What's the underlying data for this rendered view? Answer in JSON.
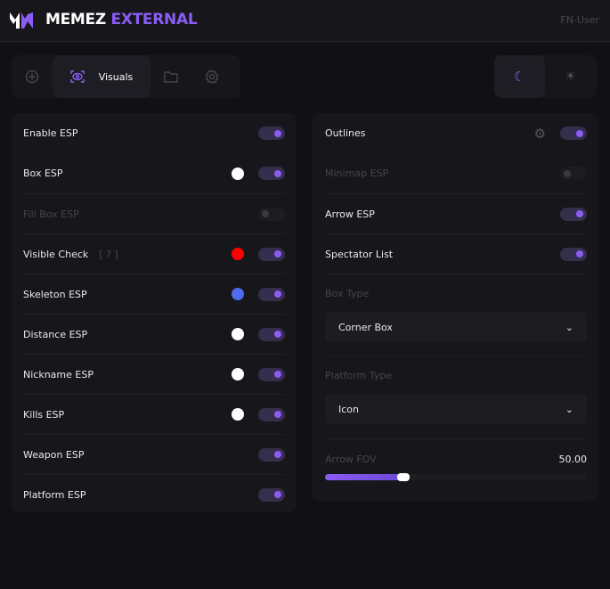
{
  "header": {
    "brand_main": "MEMEZ",
    "brand_accent": "EXTERNAL",
    "user": "FN-User",
    "logo_text": "MW"
  },
  "tabs": [
    {
      "icon": "crosshair-icon"
    },
    {
      "icon": "eye-scan-icon",
      "label": "Visuals",
      "active": true
    },
    {
      "icon": "folder-icon"
    },
    {
      "icon": "gear-icon"
    }
  ],
  "theme": {
    "selected": "dark",
    "options": [
      "moon-icon",
      "sun-icon"
    ]
  },
  "left": [
    {
      "label": "Enable ESP",
      "on": true
    },
    {
      "label": "Box ESP",
      "on": true,
      "color": "#ffffff"
    },
    {
      "label": "Fill Box ESP",
      "on": false,
      "disabled": true
    },
    {
      "label": "Visible Check",
      "hint": "[ ? ]",
      "on": true,
      "color": "#ff0000"
    },
    {
      "label": "Skeleton ESP",
      "on": true,
      "color": "#4f6bef"
    },
    {
      "label": "Distance ESP",
      "on": true,
      "color": "#ffffff"
    },
    {
      "label": "Nickname ESP",
      "on": true,
      "color": "#ffffff"
    },
    {
      "label": "Kills ESP",
      "on": true,
      "color": "#ffffff"
    },
    {
      "label": "Weapon ESP",
      "on": true
    },
    {
      "label": "Platform ESP",
      "on": true
    }
  ],
  "right": {
    "toggles": [
      {
        "label": "Outlines",
        "on": true,
        "settings": true
      },
      {
        "label": "Minimap ESP",
        "on": false,
        "disabled": true
      },
      {
        "label": "Arrow ESP",
        "on": true
      },
      {
        "label": "Spectator List",
        "on": true
      }
    ],
    "box_type": {
      "label": "Box Type",
      "value": "Corner Box"
    },
    "platform_type": {
      "label": "Platform Type",
      "value": "Icon"
    },
    "arrow_fov": {
      "label": "Arrow FOV",
      "value": "50.00",
      "fill_fraction": 0.3
    }
  },
  "colors": {
    "accent": "#8b5cf6"
  }
}
